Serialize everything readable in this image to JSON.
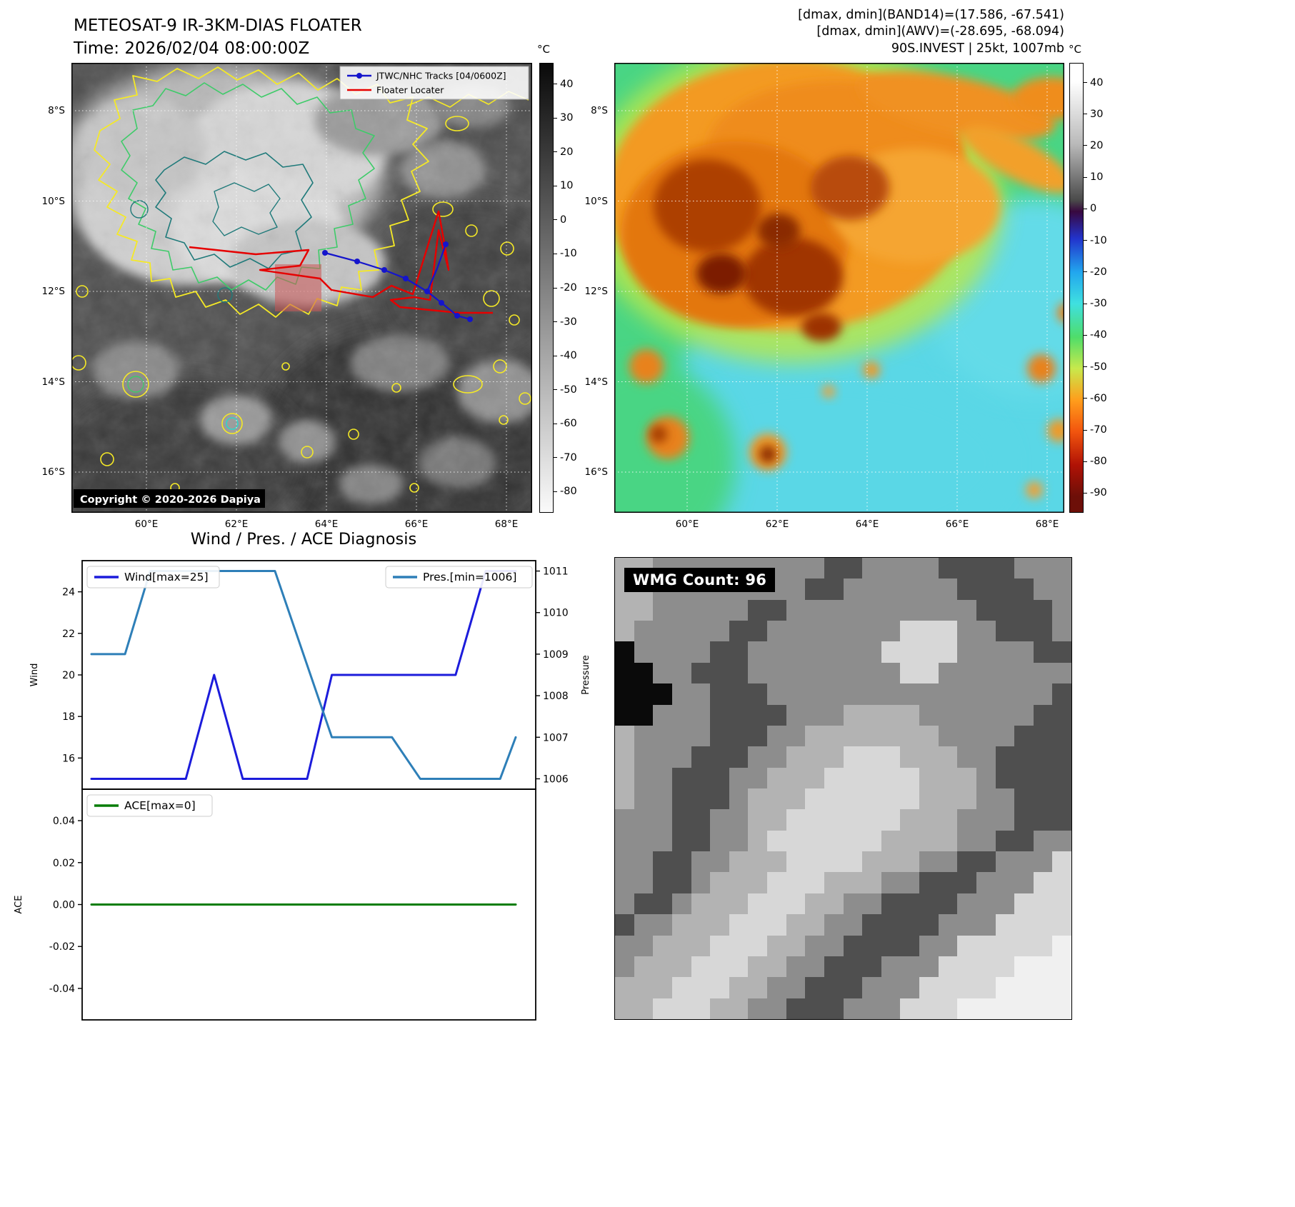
{
  "panel_ir": {
    "title_line1": "METEOSAT-9 IR-3KM-DIAS FLOATER",
    "title_line2": "Time: 2026/02/04 08:00:00Z",
    "legend": {
      "track_label": "JTWC/NHC Tracks [04/0600Z]",
      "floater_label": "Floater Locater"
    },
    "copyright": "Copyright © 2020-2026 Dapiya",
    "colorbar": {
      "unit": "°C",
      "ticks": [
        40,
        30,
        20,
        10,
        0,
        -10,
        -20,
        -30,
        -40,
        -50,
        -60,
        -70,
        -80
      ]
    },
    "lat_ticks": [
      "8°S",
      "10°S",
      "12°S",
      "14°S",
      "16°S"
    ],
    "lon_ticks": [
      "60°E",
      "62°E",
      "64°E",
      "66°E",
      "68°E"
    ]
  },
  "panel_awv": {
    "header_line1": "[dmax, dmin](BAND14)=(17.586, -67.541)",
    "header_line2": "[dmax, dmin](AWV)=(-28.695, -68.094)",
    "header_line3": "90S.INVEST | 25kt, 1007mb",
    "colorbar": {
      "unit": "°C",
      "ticks": [
        40,
        30,
        20,
        10,
        0,
        -10,
        -20,
        -30,
        -40,
        -50,
        -60,
        -70,
        -80,
        -90
      ]
    },
    "lat_ticks": [
      "8°S",
      "10°S",
      "12°S",
      "14°S",
      "16°S"
    ],
    "lon_ticks": [
      "60°E",
      "62°E",
      "64°E",
      "66°E",
      "68°E"
    ]
  },
  "panel_diag": {
    "title": "Wind / Pres. / ACE Diagnosis"
  },
  "chart_data": [
    {
      "type": "line",
      "title": "Wind / Pres. / ACE Diagnosis",
      "x_range": [
        0,
        12
      ],
      "ylabel_left": "Wind",
      "ylabel_right": "Pressure",
      "legend": [
        "Wind[max=25]",
        "Pres.[min=1006]"
      ],
      "series": [
        {
          "key": "wind",
          "name": "Wind[max=25]",
          "axis": "left",
          "color": "#1c1cdb",
          "ylim": [
            14.5,
            25.5
          ],
          "yticks": [
            16,
            18,
            20,
            22,
            24
          ],
          "x": [
            0,
            2.67,
            3.47,
            4.28,
            6.1,
            6.8,
            10.3,
            11.15,
            12
          ],
          "y": [
            15,
            15,
            20,
            15,
            15,
            20,
            20,
            25,
            25
          ]
        },
        {
          "key": "pressure",
          "name": "Pres.[min=1006]",
          "axis": "right",
          "color": "#2e7fb8",
          "ylim": [
            1005.75,
            1011.25
          ],
          "yticks": [
            1006,
            1007,
            1008,
            1009,
            1010,
            1011
          ],
          "x": [
            0,
            0.95,
            1.66,
            5.19,
            6.8,
            8.5,
            9.3,
            11.56,
            12
          ],
          "y": [
            1009,
            1009,
            1011,
            1011,
            1007,
            1007,
            1006,
            1006,
            1007
          ]
        }
      ]
    },
    {
      "type": "line",
      "x_range": [
        0,
        12
      ],
      "ylabel_left": "ACE",
      "legend": [
        "ACE[max=0]"
      ],
      "series": [
        {
          "key": "ace",
          "name": "ACE[max=0]",
          "axis": "left",
          "color": "#077d07",
          "ylim": [
            -0.055,
            0.055
          ],
          "yticks": [
            0.04,
            0.02,
            0,
            -0.02,
            -0.04
          ],
          "ytick_labels": [
            "0.04",
            "0.02",
            "0.00",
            "-0.02",
            "-0.04"
          ],
          "x": [
            0,
            12
          ],
          "y": [
            0,
            0
          ]
        }
      ]
    }
  ],
  "panel_wmg": {
    "label": "WMG Count: 96",
    "palette": {
      "0": "#0a0a0a",
      "2": "#4f4f4f",
      "5": "#8d8d8d",
      "7": "#b3b3b3",
      "8": "#d7d7d7",
      "9": "#f0f0f0"
    },
    "pixels": [
      "775555555552255552222555",
      "775555555522555555222255",
      "775555522555555555522225",
      "755555225555555888552225",
      "055552255555558888555522",
      "005522255555555885555555",
      "000552225555555555555552",
      "005552222555777755555522",
      "755552225577777775555222",
      "755522255777888777552222",
      "755222557778888877752222",
      "755222577788888877755222",
      "555225577888888777555222",
      "555225578888887777552255",
      "552255777888877755225558",
      "552257778887775522255588",
      "522577788877552222555888",
      "255777888775522225558888",
      "557778887755222255888889",
      "577788877552225558888999",
      "777888775522255588889999",
      "778887755222555888999999"
    ]
  }
}
